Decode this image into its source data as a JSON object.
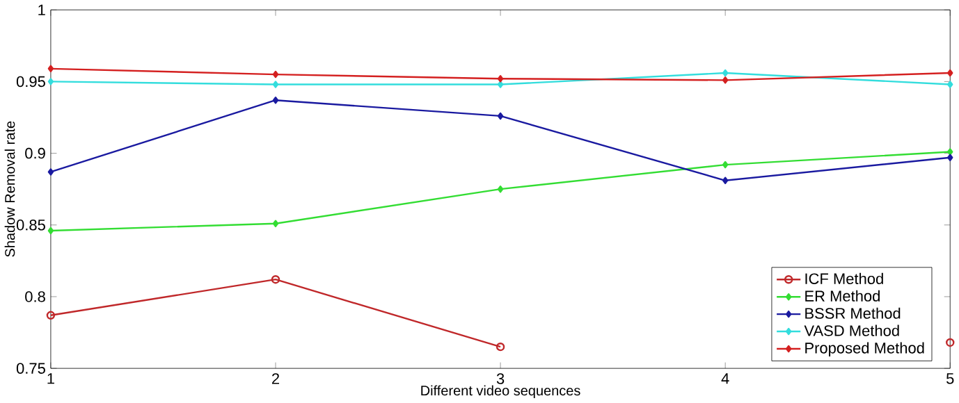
{
  "chart_data": {
    "type": "line",
    "xlabel": "Different video sequences",
    "ylabel": "Shadow Removal rate",
    "x": [
      1,
      2,
      3,
      4,
      5
    ],
    "xlim": [
      1,
      5
    ],
    "xticks": [
      1,
      2,
      3,
      4,
      5
    ],
    "ylim": [
      0.75,
      1
    ],
    "yticks": [
      0.75,
      0.8,
      0.85,
      0.9,
      0.95,
      1
    ],
    "legend": "bottom right",
    "grid": false,
    "line_style": "solid",
    "series": [
      {
        "name": "ICF Method",
        "color": "#c0282a",
        "marker": "circle",
        "values": [
          0.787,
          0.812,
          0.765,
          null,
          0.768
        ]
      },
      {
        "name": "ER Method",
        "color": "#33dd33",
        "marker": "diamond",
        "values": [
          0.846,
          0.851,
          0.875,
          0.892,
          0.901
        ]
      },
      {
        "name": "BSSR Method",
        "color": "#1a1aa0",
        "marker": "diamond",
        "values": [
          0.887,
          0.937,
          0.926,
          0.881,
          0.897
        ]
      },
      {
        "name": "VASD Method",
        "color": "#33dddd",
        "marker": "diamond",
        "values": [
          0.95,
          0.948,
          0.948,
          0.956,
          0.948
        ]
      },
      {
        "name": "Proposed Method",
        "color": "#d42020",
        "marker": "diamond",
        "values": [
          0.959,
          0.955,
          0.952,
          0.951,
          0.956
        ]
      }
    ]
  }
}
